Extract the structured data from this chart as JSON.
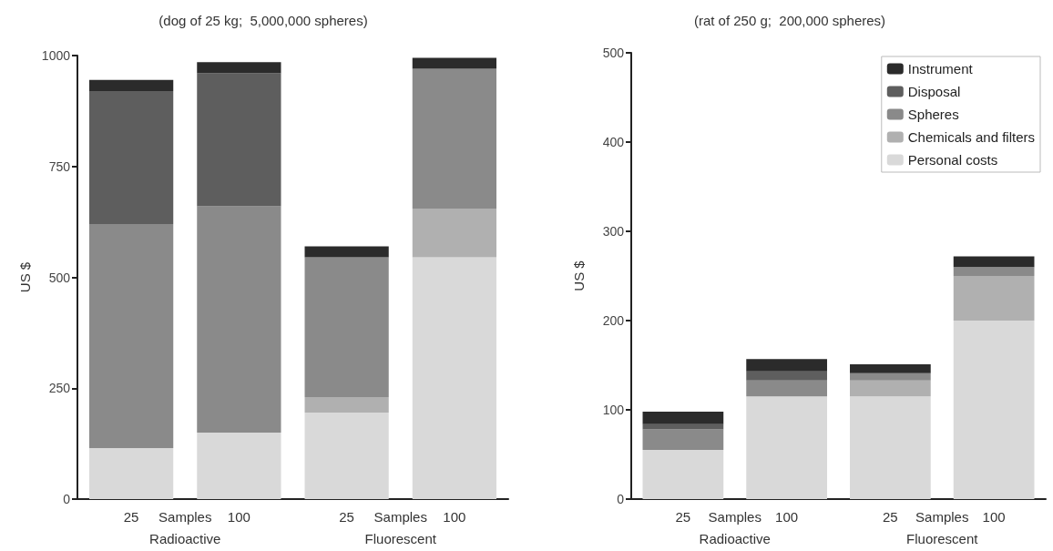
{
  "chart_data": [
    {
      "type": "bar",
      "title": "(dog of 25 kg;  5,000,000 spheres)",
      "ylabel": "US $",
      "categories": [
        "25",
        "100",
        "25",
        "100"
      ],
      "stacked": true,
      "grid": false,
      "legend": false,
      "ylim": [
        0,
        1000
      ],
      "yticks": [
        0,
        250,
        500,
        750,
        1000
      ],
      "annotations": [
        "Samples",
        "Samples",
        "Radioactive",
        "Fluorescent"
      ],
      "series": [
        {
          "color": "#d9d9d9",
          "values": [
            115,
            150,
            195,
            545
          ]
        },
        {
          "color": "#b0b0b0",
          "values": [
            0,
            0,
            35,
            110
          ]
        },
        {
          "color": "#8a8a8a",
          "values": [
            505,
            510,
            315,
            315
          ]
        },
        {
          "color": "#5e5e5e",
          "values": [
            300,
            300,
            0,
            0
          ]
        },
        {
          "color": "#2b2b2b",
          "values": [
            25,
            25,
            25,
            25
          ]
        }
      ]
    },
    {
      "type": "bar",
      "title": "(rat of 250 g;  200,000 spheres)",
      "ylabel": "US $",
      "categories": [
        "25",
        "100",
        "25",
        "100"
      ],
      "stacked": true,
      "grid": false,
      "legend": "top right",
      "ylim": [
        0,
        500
      ],
      "yticks": [
        0,
        100,
        200,
        300,
        400,
        500
      ],
      "annotations": [
        "Samples",
        "Samples",
        "Radioactive",
        "Fluorescent"
      ],
      "series": [
        {
          "name": "Personal costs",
          "color": "#d9d9d9",
          "values": [
            55,
            115,
            115,
            200
          ]
        },
        {
          "name": "Chemicals and filters",
          "color": "#b0b0b0",
          "values": [
            0,
            0,
            18,
            50
          ]
        },
        {
          "name": "Spheres",
          "color": "#8a8a8a",
          "values": [
            23,
            18,
            8,
            10
          ]
        },
        {
          "name": "Disposal",
          "color": "#5e5e5e",
          "values": [
            6,
            10,
            0,
            0
          ]
        },
        {
          "name": "Instrument",
          "color": "#2b2b2b",
          "values": [
            14,
            14,
            10,
            12
          ]
        }
      ]
    }
  ]
}
